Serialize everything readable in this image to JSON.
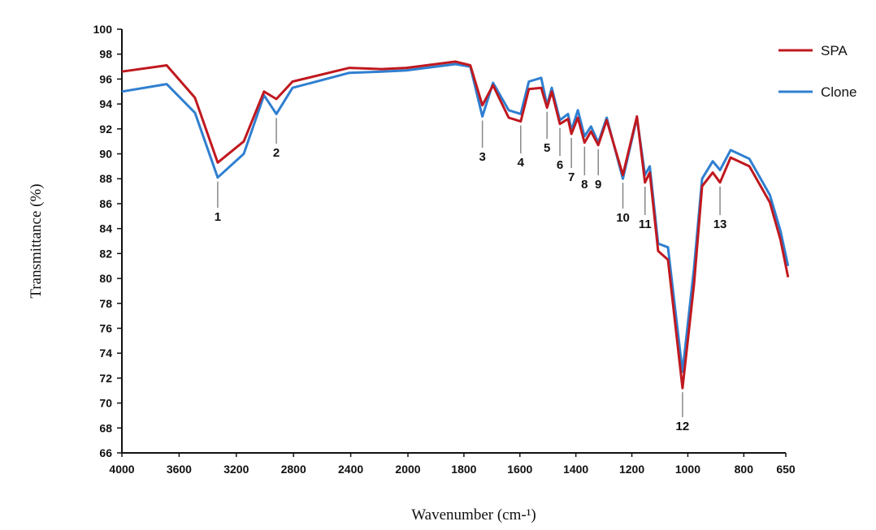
{
  "chart_data": {
    "type": "line",
    "title": "",
    "xlabel": "Wavenumber (cm-¹)",
    "ylabel": "Transmittance (%)",
    "xlim": [
      4000,
      650
    ],
    "ylim": [
      66,
      100
    ],
    "x_ticks": [
      4000,
      3600,
      3200,
      2800,
      2400,
      2000,
      1800,
      1600,
      1400,
      1200,
      1000,
      800,
      650
    ],
    "y_ticks": [
      66,
      68,
      70,
      72,
      74,
      76,
      78,
      80,
      82,
      84,
      86,
      88,
      90,
      92,
      94,
      96,
      98,
      100
    ],
    "grid": false,
    "legend_position": "top-right",
    "x": [
      4000,
      3687,
      3489,
      3330,
      3148,
      3006,
      2920,
      2807,
      2409,
      2182,
      2011,
      1830,
      1777,
      1734,
      1696,
      1640,
      1597,
      1568,
      1524,
      1503,
      1486,
      1457,
      1428,
      1416,
      1393,
      1369,
      1346,
      1320,
      1290,
      1232,
      1182,
      1153,
      1136,
      1106,
      1071,
      1019,
      978,
      949,
      911,
      885,
      847,
      780,
      707,
      669,
      642
    ],
    "series": [
      {
        "name": "SPA",
        "color": "#c0181f",
        "values": [
          96.6,
          97.1,
          94.5,
          89.3,
          91.0,
          95.0,
          94.4,
          95.8,
          96.9,
          96.8,
          96.9,
          97.4,
          97.1,
          93.9,
          95.5,
          92.9,
          92.6,
          95.2,
          95.3,
          93.7,
          95.0,
          92.4,
          92.8,
          91.6,
          92.9,
          90.9,
          91.8,
          90.7,
          92.7,
          88.3,
          93.0,
          87.7,
          88.5,
          82.2,
          81.5,
          71.2,
          79.5,
          87.4,
          88.5,
          87.7,
          89.7,
          89.0,
          86.1,
          83.1,
          80.1
        ]
      },
      {
        "name": "Clone",
        "color": "#2f7fd0",
        "values": [
          95.0,
          95.6,
          93.3,
          88.1,
          90.0,
          94.7,
          93.2,
          95.3,
          96.5,
          96.6,
          96.7,
          97.2,
          97.0,
          93.0,
          95.7,
          93.5,
          93.2,
          95.8,
          96.1,
          93.9,
          95.3,
          92.7,
          93.2,
          91.9,
          93.5,
          91.4,
          92.2,
          90.9,
          92.9,
          88.0,
          92.9,
          88.3,
          89.0,
          82.8,
          82.5,
          72.5,
          80.8,
          88.0,
          89.4,
          88.7,
          90.3,
          89.6,
          86.7,
          83.8,
          81.0
        ]
      }
    ],
    "annotations": [
      {
        "label": "1",
        "x": 3330
      },
      {
        "label": "2",
        "x": 2920
      },
      {
        "label": "3",
        "x": 1734
      },
      {
        "label": "4",
        "x": 1597
      },
      {
        "label": "5",
        "x": 1503
      },
      {
        "label": "6",
        "x": 1457
      },
      {
        "label": "7",
        "x": 1416
      },
      {
        "label": "8",
        "x": 1369
      },
      {
        "label": "9",
        "x": 1320
      },
      {
        "label": "10",
        "x": 1232
      },
      {
        "label": "11",
        "x": 1153
      },
      {
        "label": "12",
        "x": 1019
      },
      {
        "label": "13",
        "x": 885
      }
    ]
  }
}
